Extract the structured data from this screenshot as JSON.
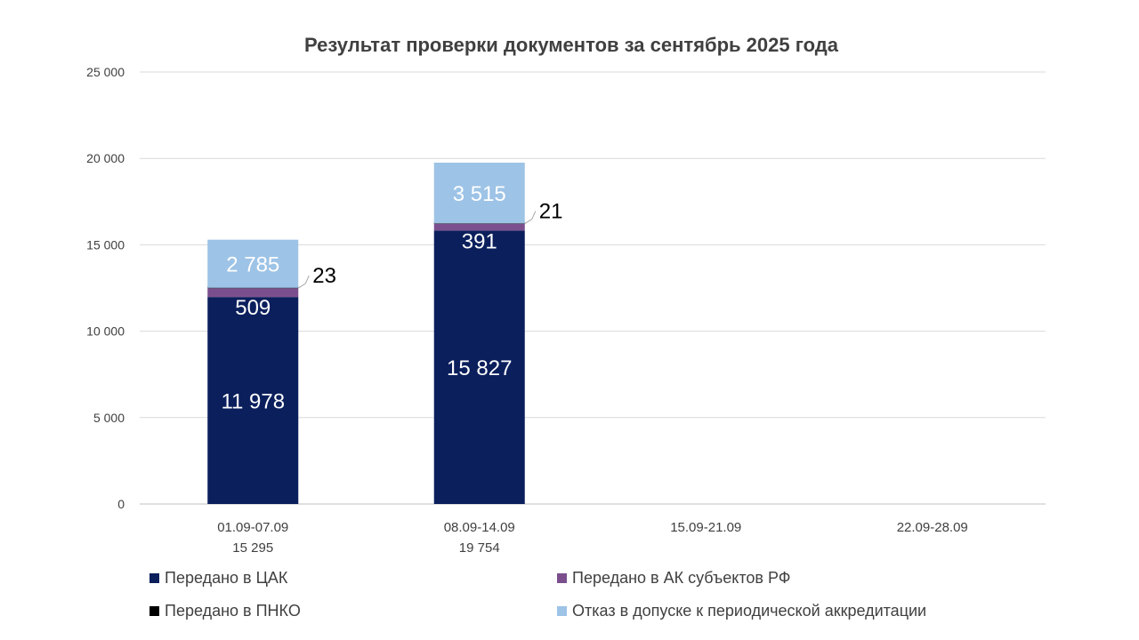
{
  "chart_data": {
    "type": "bar",
    "stacked": true,
    "title": "Результат проверки документов за сентябрь 2025 года",
    "categories": [
      "01.09-07.09",
      "08.09-14.09",
      "15.09-21.09",
      "22.09-28.09"
    ],
    "category_totals": [
      "15 295",
      "19 754",
      "",
      ""
    ],
    "ylim": [
      0,
      25000
    ],
    "yticks": [
      0,
      5000,
      10000,
      15000,
      20000,
      25000
    ],
    "ytick_labels": [
      "0",
      "5 000",
      "10 000",
      "15 000",
      "20 000",
      "25 000"
    ],
    "grid": true,
    "legend_position": "bottom",
    "series": [
      {
        "name": "Передано в ЦАК",
        "color": "#0b1f5c",
        "values": [
          11978,
          15827,
          null,
          null
        ],
        "labels": [
          "11 978",
          "15 827",
          "",
          ""
        ]
      },
      {
        "name": "Передано в АК субъектов РФ",
        "color": "#7b4f8e",
        "values": [
          509,
          391,
          null,
          null
        ],
        "labels": [
          "509",
          "391",
          "",
          ""
        ]
      },
      {
        "name": "Передано в ПНКО",
        "color": "#000000",
        "values": [
          23,
          21,
          null,
          null
        ],
        "labels": [
          "23",
          "21",
          "",
          ""
        ]
      },
      {
        "name": "Отказ в допуске к периодической аккредитации",
        "color": "#9dc3e6",
        "values": [
          2785,
          3515,
          null,
          null
        ],
        "labels": [
          "2 785",
          "3 515",
          "",
          ""
        ]
      }
    ]
  }
}
